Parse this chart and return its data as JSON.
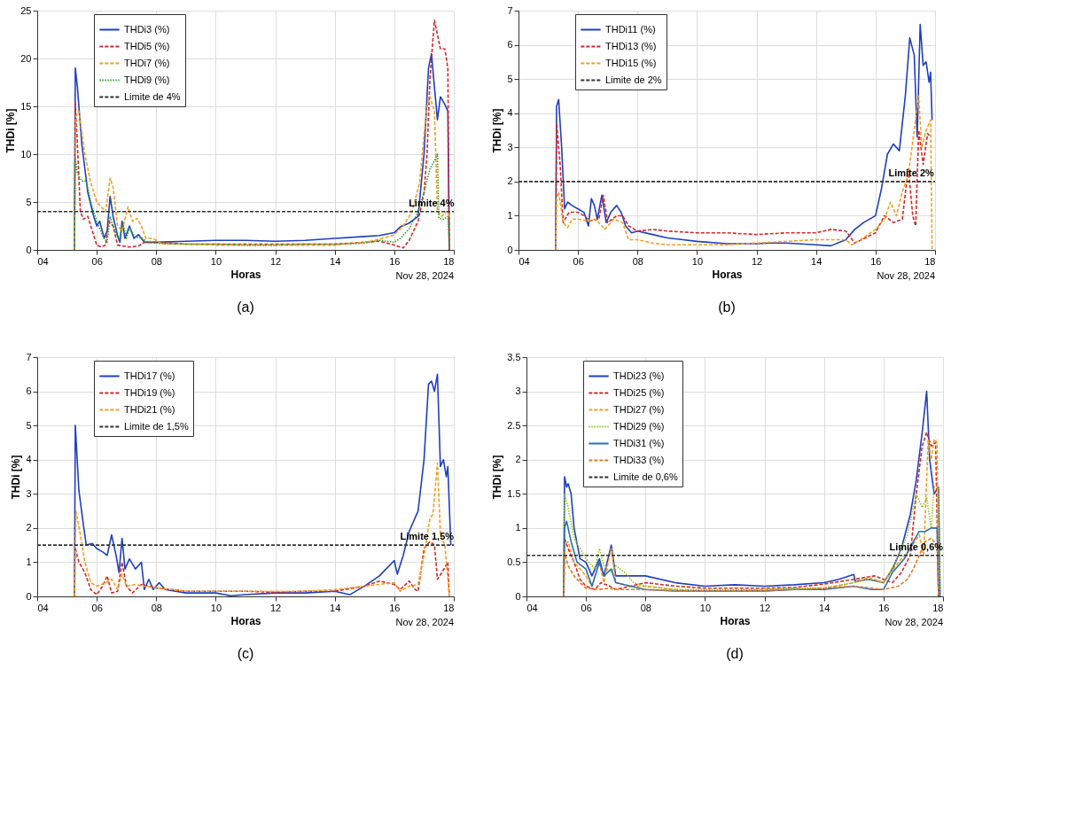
{
  "chart_data": [
    {
      "type": "line",
      "title": "(a)",
      "xlabel": "Horas",
      "ylabel": "THDi [%]",
      "xlim": [
        4,
        18
      ],
      "ylim": [
        0,
        25
      ],
      "yticks": [
        0,
        5,
        10,
        15,
        20,
        25
      ],
      "xticks": [
        {
          "value": 4,
          "label": "04"
        },
        {
          "value": 6,
          "label": "06"
        },
        {
          "value": 8,
          "label": "08"
        },
        {
          "value": 10,
          "label": "10"
        },
        {
          "value": 12,
          "label": "12"
        },
        {
          "value": 14,
          "label": "14"
        },
        {
          "value": 16,
          "label": "16"
        },
        {
          "value": 18,
          "label": "18"
        }
      ],
      "grid": true,
      "legend": "top left",
      "marker": "none",
      "annotations": [
        {
          "text": "Limite 4%",
          "x": 17.25,
          "y": 4
        },
        "Nov 28, 2024"
      ],
      "series": [
        {
          "name": "THDi3 (%)",
          "color": "#1f3fbf",
          "line_style": "solid",
          "x": [
            5.25,
            5.28,
            5.35,
            5.5,
            5.7,
            5.9,
            6.0,
            6.1,
            6.25,
            6.35,
            6.45,
            6.55,
            6.7,
            6.78,
            6.85,
            6.95,
            7.1,
            7.25,
            7.4,
            7.6,
            8.0,
            9,
            10,
            11,
            12,
            13,
            14,
            15,
            15.5,
            16,
            16.2,
            16.5,
            16.8,
            17.0,
            17.15,
            17.25,
            17.35,
            17.45,
            17.55,
            17.7,
            17.8,
            17.85
          ],
          "values": [
            0,
            19,
            17,
            11,
            6,
            3.5,
            2.5,
            3,
            1.2,
            2,
            5.6,
            3.5,
            1.5,
            0.8,
            3,
            1.2,
            2.5,
            1.2,
            1.6,
            0.8,
            0.8,
            0.9,
            1.0,
            1.0,
            0.9,
            1.0,
            1.2,
            1.4,
            1.5,
            1.8,
            2.4,
            2.8,
            3.5,
            10,
            19,
            20.5,
            17,
            13.6,
            16,
            15.2,
            14.5,
            0
          ]
        },
        {
          "name": "THDi5 (%)",
          "color": "#d62728",
          "line_style": "dashed",
          "x": [
            5.25,
            5.28,
            5.35,
            5.45,
            5.55,
            5.7,
            5.9,
            6.0,
            6.15,
            6.3,
            6.4,
            6.55,
            6.7,
            6.9,
            7.1,
            7.4,
            7.6,
            8,
            9,
            10,
            11,
            12,
            13,
            14,
            15,
            15.5,
            16,
            16.3,
            16.5,
            16.8,
            17.0,
            17.1,
            17.2,
            17.35,
            17.45,
            17.55,
            17.7,
            17.8,
            17.85
          ],
          "values": [
            0,
            15.5,
            11,
            4,
            3.2,
            3.5,
            1.5,
            0.5,
            0.3,
            0.5,
            3,
            2.5,
            0.5,
            0.4,
            0.3,
            0.4,
            0.8,
            0.8,
            0.6,
            0.6,
            0.6,
            0.6,
            0.6,
            0.6,
            0.8,
            0.9,
            0.5,
            0.2,
            1,
            3,
            6,
            10,
            18,
            24,
            22.5,
            21,
            21,
            19,
            0
          ]
        },
        {
          "name": "THDi7 (%)",
          "color": "#f0a020",
          "line_style": "dashed",
          "x": [
            5.25,
            5.3,
            5.4,
            5.6,
            5.8,
            6.0,
            6.15,
            6.3,
            6.45,
            6.55,
            6.7,
            6.85,
            7.05,
            7.2,
            7.35,
            7.5,
            7.65,
            7.9,
            8.2,
            9,
            10,
            11,
            12,
            13,
            14,
            15,
            15.5,
            16,
            16.3,
            16.6,
            16.85,
            17.0,
            17.1,
            17.2,
            17.35,
            17.45,
            17.6,
            17.75,
            17.8,
            17.85
          ],
          "values": [
            0,
            14,
            14.5,
            10,
            7,
            5,
            4.5,
            4,
            7.5,
            6.5,
            2.5,
            2,
            4.5,
            3,
            3.3,
            2.5,
            1.2,
            1.2,
            0.6,
            0.6,
            0.5,
            0.5,
            0.5,
            0.5,
            0.5,
            0.8,
            1.1,
            1.6,
            2.5,
            4,
            7,
            12,
            15,
            16,
            14.5,
            4,
            3.5,
            4,
            4,
            3.5
          ]
        },
        {
          "name": "THDi9 (%)",
          "color": "#2ca02c",
          "line_style": "dotted",
          "x": [
            5.25,
            5.28,
            5.35,
            5.5,
            5.65,
            5.8,
            6.0,
            6.2,
            6.35,
            6.45,
            6.6,
            6.75,
            6.88,
            7.0,
            7.1,
            7.3,
            7.5,
            7.7,
            8,
            9,
            10,
            11,
            12,
            13,
            14,
            15,
            15.5,
            16,
            16.2,
            16.5,
            16.8,
            17.0,
            17.2,
            17.35,
            17.45,
            17.5,
            17.65,
            17.8,
            17.85
          ],
          "values": [
            0,
            9.5,
            8,
            7.2,
            7.2,
            5,
            3,
            1.5,
            0.8,
            3.5,
            2,
            1,
            2.8,
            1.2,
            2.3,
            1.3,
            1.3,
            0.8,
            0.7,
            0.6,
            0.6,
            0.5,
            0.5,
            0.6,
            0.6,
            0.7,
            1,
            0.8,
            1.2,
            2.2,
            4,
            6,
            8.5,
            9.3,
            10,
            3.3,
            3.2,
            3.5,
            0
          ]
        },
        {
          "name": "Limite de 4%",
          "color": "#333333",
          "line_style": "dashed",
          "x": [
            4,
            18
          ],
          "values": [
            4,
            4
          ]
        }
      ]
    },
    {
      "type": "line",
      "title": "(b)",
      "xlabel": "Horas",
      "ylabel": "THDi [%]",
      "xlim": [
        4,
        18
      ],
      "ylim": [
        0,
        7
      ],
      "yticks": [
        0,
        1,
        2,
        3,
        4,
        5,
        6,
        7
      ],
      "xticks": [
        {
          "value": 4,
          "label": "04"
        },
        {
          "value": 6,
          "label": "06"
        },
        {
          "value": 8,
          "label": "08"
        },
        {
          "value": 10,
          "label": "10"
        },
        {
          "value": 12,
          "label": "12"
        },
        {
          "value": 14,
          "label": "14"
        },
        {
          "value": 16,
          "label": "16"
        },
        {
          "value": 18,
          "label": "18"
        }
      ],
      "grid": true,
      "legend": "top left",
      "marker": "none",
      "annotations": [
        {
          "text": "Limite 2%",
          "x": 17.2,
          "y": 2
        },
        "Nov 28, 2024"
      ],
      "series": [
        {
          "name": "THDi11 (%)",
          "color": "#1f3fbf",
          "line_style": "solid",
          "x": [
            5.25,
            5.28,
            5.35,
            5.45,
            5.55,
            5.65,
            5.8,
            6.0,
            6.2,
            6.35,
            6.45,
            6.55,
            6.65,
            6.8,
            6.95,
            7.1,
            7.3,
            7.45,
            7.6,
            7.8,
            8.0,
            8.5,
            9,
            10,
            11,
            12,
            12.5,
            13,
            14,
            14.5,
            15,
            15.3,
            15.6,
            16,
            16.2,
            16.4,
            16.6,
            16.8,
            17.0,
            17.15,
            17.3,
            17.4,
            17.5,
            17.6,
            17.7,
            17.8,
            17.85,
            17.9
          ],
          "values": [
            0,
            4.2,
            4.4,
            3,
            1.2,
            1.4,
            1.3,
            1.2,
            1.1,
            0.7,
            1.5,
            1.3,
            0.9,
            1.6,
            0.8,
            1.1,
            1.3,
            1.1,
            0.7,
            0.5,
            0.55,
            0.45,
            0.35,
            0.25,
            0.18,
            0.18,
            0.2,
            0.2,
            0.15,
            0.12,
            0.3,
            0.6,
            0.8,
            1,
            1.8,
            2.8,
            3.1,
            2.9,
            4.5,
            6.2,
            5.7,
            3.3,
            6.6,
            5.4,
            5.5,
            4.9,
            5.2,
            3.8
          ]
        },
        {
          "name": "THDi13 (%)",
          "color": "#d62728",
          "line_style": "dashed",
          "x": [
            5.25,
            5.28,
            5.4,
            5.5,
            5.7,
            6.0,
            6.2,
            6.4,
            6.7,
            6.85,
            7.0,
            7.3,
            7.5,
            7.7,
            8,
            8.5,
            9,
            10,
            11,
            12,
            13,
            14,
            14.5,
            15,
            15.3,
            16,
            16.3,
            16.6,
            16.9,
            17.1,
            17.25,
            17.35,
            17.45,
            17.6,
            17.75,
            17.85
          ],
          "values": [
            0,
            3.7,
            2.5,
            0.8,
            1.1,
            1.1,
            1.0,
            0.85,
            0.9,
            1.6,
            0.8,
            1.0,
            1.0,
            0.7,
            0.55,
            0.6,
            0.55,
            0.5,
            0.5,
            0.45,
            0.5,
            0.5,
            0.6,
            0.55,
            0.2,
            0.5,
            1.0,
            0.8,
            0.9,
            2.4,
            1.0,
            0.7,
            3.5,
            2.5,
            3.4,
            3.3
          ]
        },
        {
          "name": "THDi15 (%)",
          "color": "#f0a020",
          "line_style": "dashed",
          "x": [
            5.25,
            5.28,
            5.35,
            5.5,
            5.65,
            5.8,
            6.0,
            6.3,
            6.6,
            6.9,
            7.2,
            7.5,
            7.7,
            8,
            8.5,
            9,
            10,
            11,
            12,
            13,
            14,
            15,
            15.2,
            15.5,
            16,
            16.3,
            16.5,
            16.7,
            16.9,
            17.1,
            17.3,
            17.45,
            17.55,
            17.7,
            17.85,
            17.9
          ],
          "values": [
            0,
            1.5,
            1.7,
            0.8,
            0.65,
            0.9,
            0.9,
            0.85,
            0.9,
            0.6,
            0.9,
            0.8,
            0.3,
            0.3,
            0.2,
            0.15,
            0.15,
            0.15,
            0.2,
            0.25,
            0.3,
            0.3,
            0.15,
            0.3,
            0.6,
            0.9,
            1.4,
            1.0,
            1.7,
            2.2,
            3.5,
            4.5,
            3.0,
            3.5,
            3.8,
            0
          ]
        },
        {
          "name": "Limite de 2%",
          "color": "#333333",
          "line_style": "dashed",
          "x": [
            4,
            18
          ],
          "values": [
            2,
            2
          ]
        }
      ]
    },
    {
      "type": "line",
      "title": "(c)",
      "xlabel": "Horas",
      "ylabel": "THDi [%]",
      "xlim": [
        4,
        18
      ],
      "ylim": [
        0,
        7
      ],
      "yticks": [
        0,
        1,
        2,
        3,
        4,
        5,
        6,
        7
      ],
      "xticks": [
        {
          "value": 4,
          "label": "04"
        },
        {
          "value": 6,
          "label": "06"
        },
        {
          "value": 8,
          "label": "08"
        },
        {
          "value": 10,
          "label": "10"
        },
        {
          "value": 12,
          "label": "12"
        },
        {
          "value": 14,
          "label": "14"
        },
        {
          "value": 16,
          "label": "16"
        },
        {
          "value": 18,
          "label": "18"
        }
      ],
      "grid": true,
      "legend": "top left",
      "marker": "none",
      "annotations": [
        {
          "text": "Limite 1,5%",
          "x": 17.1,
          "y": 1.5
        },
        "Nov 28, 2024"
      ],
      "series": [
        {
          "name": "THDi17 (%)",
          "color": "#1f3fbf",
          "line_style": "solid",
          "x": [
            5.25,
            5.28,
            5.4,
            5.55,
            5.65,
            5.85,
            6.0,
            6.2,
            6.35,
            6.5,
            6.65,
            6.75,
            6.85,
            6.95,
            7.1,
            7.3,
            7.5,
            7.6,
            7.75,
            7.9,
            8.1,
            8.3,
            9,
            10,
            10.5,
            11,
            12,
            13,
            14,
            14.5,
            15,
            15.5,
            16,
            16.1,
            16.3,
            16.5,
            16.8,
            17.0,
            17.15,
            17.25,
            17.35,
            17.45,
            17.55,
            17.65,
            17.75,
            17.8,
            17.9
          ],
          "values": [
            0,
            5,
            3.1,
            2.1,
            1.5,
            1.55,
            1.4,
            1.3,
            1.2,
            1.8,
            1.2,
            0.7,
            1.7,
            0.8,
            1.1,
            0.8,
            1.0,
            0.2,
            0.5,
            0.2,
            0.4,
            0.2,
            0.1,
            0.1,
            0.02,
            0.05,
            0.1,
            0.1,
            0.15,
            0.05,
            0.3,
            0.6,
            1.05,
            0.65,
            1.2,
            1.9,
            2.5,
            4,
            6.2,
            6.3,
            6.0,
            6.5,
            3.8,
            4.0,
            3.5,
            3.8,
            1.5
          ]
        },
        {
          "name": "THDi19 (%)",
          "color": "#d62728",
          "line_style": "dashed",
          "x": [
            5.25,
            5.28,
            5.4,
            5.6,
            5.8,
            6.0,
            6.2,
            6.35,
            6.5,
            6.7,
            6.85,
            7.0,
            7.2,
            7.5,
            8,
            9,
            10,
            11,
            12,
            13,
            14,
            15,
            15.5,
            16,
            16.2,
            16.5,
            16.7,
            16.8,
            17.0,
            17.2,
            17.35,
            17.45,
            17.6,
            17.8,
            17.85
          ],
          "values": [
            0,
            1.4,
            1.0,
            0.7,
            0.2,
            0.05,
            0.3,
            0.6,
            0.1,
            0.15,
            1.0,
            0.3,
            0.1,
            0.35,
            0.25,
            0.15,
            0.15,
            0.15,
            0.12,
            0.15,
            0.15,
            0.3,
            0.45,
            0.35,
            0.2,
            0.45,
            0.2,
            0.15,
            1.4,
            1.6,
            1.5,
            0.5,
            0.7,
            1.0,
            0
          ]
        },
        {
          "name": "THDi21 (%)",
          "color": "#f0a020",
          "line_style": "dashed",
          "x": [
            5.25,
            5.3,
            5.45,
            5.6,
            5.8,
            6.0,
            6.3,
            6.5,
            6.7,
            6.85,
            7.0,
            7.3,
            7.6,
            8,
            9,
            10,
            11,
            12,
            13,
            14,
            15,
            15.5,
            16,
            16.2,
            16.5,
            16.8,
            17.0,
            17.2,
            17.3,
            17.45,
            17.55,
            17.7,
            17.85
          ],
          "values": [
            0,
            2.5,
            1.8,
            1.0,
            0.4,
            0.3,
            0.4,
            0.5,
            0.2,
            0.65,
            0.3,
            0.35,
            0.3,
            0.25,
            0.15,
            0.15,
            0.15,
            0.15,
            0.15,
            0.2,
            0.3,
            0.35,
            0.4,
            0.15,
            0.3,
            0.35,
            1.2,
            2.3,
            2.4,
            3.9,
            1.8,
            1.5,
            0
          ]
        },
        {
          "name": "Limite de 1,5%",
          "color": "#333333",
          "line_style": "dashed",
          "x": [
            4,
            18
          ],
          "values": [
            1.5,
            1.5
          ]
        }
      ]
    },
    {
      "type": "line",
      "title": "(d)",
      "xlabel": "Horas",
      "ylabel": "THDi [%]",
      "xlim": [
        4,
        18
      ],
      "ylim": [
        0,
        3.5
      ],
      "yticks": [
        0,
        0.5,
        1,
        1.5,
        2,
        2.5,
        3,
        3.5
      ],
      "xticks": [
        {
          "value": 4,
          "label": "04"
        },
        {
          "value": 6,
          "label": "06"
        },
        {
          "value": 8,
          "label": "08"
        },
        {
          "value": 10,
          "label": "10"
        },
        {
          "value": 12,
          "label": "12"
        },
        {
          "value": 14,
          "label": "14"
        },
        {
          "value": 16,
          "label": "16"
        },
        {
          "value": 18,
          "label": "18"
        }
      ],
      "grid": true,
      "legend": "top left",
      "marker": "none",
      "annotations": [
        {
          "text": "Limite 0,6%",
          "x": 17.1,
          "y": 0.6
        },
        "Nov 28, 2024"
      ],
      "series": [
        {
          "name": "THDi23 (%)",
          "color": "#1f3fbf",
          "line_style": "solid",
          "x": [
            5.25,
            5.28,
            5.35,
            5.4,
            5.5,
            5.6,
            5.8,
            6.0,
            6.2,
            6.45,
            6.6,
            6.85,
            7.0,
            7.3,
            7.6,
            8,
            9,
            10,
            11,
            12,
            13,
            14,
            14.5,
            15,
            15.05,
            15.5,
            16,
            16.3,
            16.6,
            16.9,
            17.1,
            17.3,
            17.45,
            17.55,
            17.7,
            17.85,
            17.9
          ],
          "values": [
            0,
            1.75,
            1.6,
            1.65,
            1.5,
            1.0,
            0.55,
            0.5,
            0.3,
            0.55,
            0.3,
            0.75,
            0.3,
            0.3,
            0.3,
            0.3,
            0.2,
            0.15,
            0.17,
            0.15,
            0.17,
            0.2,
            0.25,
            0.32,
            0.22,
            0.25,
            0.2,
            0.4,
            0.7,
            1.2,
            1.7,
            2.4,
            3.0,
            2.0,
            1.5,
            1.6,
            0
          ]
        },
        {
          "name": "THDi25 (%)",
          "color": "#d62728",
          "line_style": "dashed",
          "x": [
            5.25,
            5.28,
            5.4,
            5.6,
            5.8,
            6.0,
            6.3,
            6.5,
            6.8,
            7.0,
            7.5,
            8,
            9,
            10,
            11,
            12,
            13,
            14,
            15,
            15.7,
            16,
            16.3,
            16.6,
            16.9,
            17.1,
            17.3,
            17.45,
            17.6,
            17.75,
            17.85
          ],
          "values": [
            0,
            0.85,
            0.7,
            0.5,
            0.25,
            0.15,
            0.1,
            0.2,
            0.15,
            0.1,
            0.15,
            0.2,
            0.15,
            0.12,
            0.12,
            0.12,
            0.13,
            0.18,
            0.25,
            0.3,
            0.25,
            0.2,
            0.35,
            0.6,
            1.5,
            2.2,
            2.4,
            2.2,
            2.25,
            0
          ]
        },
        {
          "name": "THDi27 (%)",
          "color": "#f0a020",
          "line_style": "dashed",
          "x": [
            5.25,
            5.28,
            5.4,
            5.6,
            5.8,
            6.0,
            6.2,
            6.45,
            6.6,
            6.85,
            7.0,
            7.5,
            8,
            9,
            10,
            11,
            12,
            13,
            14,
            15,
            15.5,
            16,
            16.5,
            16.9,
            17.2,
            17.35,
            17.5,
            17.6,
            17.7,
            17.8,
            17.85
          ],
          "values": [
            0,
            0.75,
            0.8,
            0.5,
            0.4,
            0.3,
            0.15,
            0.5,
            0.2,
            0.7,
            0.2,
            0.15,
            0.15,
            0.1,
            0.08,
            0.08,
            0.1,
            0.1,
            0.12,
            0.2,
            0.28,
            0.2,
            0.5,
            0.7,
            0.9,
            0.6,
            2.3,
            2.0,
            2.3,
            2.25,
            0
          ]
        },
        {
          "name": "THDi29 (%)",
          "color": "#8fc31f",
          "line_style": "dotted",
          "x": [
            5.25,
            5.28,
            5.4,
            5.6,
            5.8,
            6.0,
            6.3,
            6.45,
            6.6,
            6.85,
            7.0,
            7.3,
            7.6,
            8,
            9,
            10,
            11,
            12,
            13,
            14,
            15,
            15.5,
            16,
            16.4,
            16.8,
            17.1,
            17.3,
            17.45,
            17.6,
            17.7,
            17.85,
            17.9
          ],
          "values": [
            0,
            1.5,
            1.3,
            0.85,
            0.7,
            0.55,
            0.4,
            0.7,
            0.45,
            0.35,
            0.45,
            0.35,
            0.2,
            0.15,
            0.1,
            0.1,
            0.1,
            0.1,
            0.12,
            0.12,
            0.2,
            0.25,
            0.2,
            0.5,
            0.9,
            1.5,
            1.3,
            1.45,
            1.0,
            1.6,
            1.6,
            0
          ]
        },
        {
          "name": "THDi31 (%)",
          "color": "#2a6fb5",
          "line_style": "solid",
          "x": [
            5.25,
            5.28,
            5.35,
            5.5,
            5.7,
            6.0,
            6.2,
            6.45,
            6.6,
            6.85,
            7.0,
            7.5,
            8,
            9,
            10,
            11,
            12,
            13,
            14,
            15,
            15.6,
            16,
            16.3,
            16.7,
            17.0,
            17.2,
            17.4,
            17.6,
            17.8,
            17.85
          ],
          "values": [
            0,
            1.0,
            1.1,
            0.8,
            0.5,
            0.4,
            0.15,
            0.5,
            0.3,
            0.4,
            0.2,
            0.15,
            0.1,
            0.08,
            0.08,
            0.08,
            0.08,
            0.1,
            0.1,
            0.15,
            0.1,
            0.1,
            0.35,
            0.55,
            0.8,
            0.95,
            0.95,
            1.0,
            1.0,
            0
          ]
        },
        {
          "name": "THDi33 (%)",
          "color": "#e07b20",
          "line_style": "dashed",
          "x": [
            5.25,
            5.28,
            5.4,
            5.6,
            5.8,
            6.0,
            6.4,
            6.8,
            7.0,
            8,
            9,
            10,
            11,
            12,
            13,
            14,
            15,
            16,
            16.5,
            16.8,
            17.0,
            17.2,
            17.4,
            17.6,
            17.8,
            17.85
          ],
          "values": [
            0,
            0.65,
            0.45,
            0.3,
            0.2,
            0.12,
            0.1,
            0.12,
            0.1,
            0.1,
            0.08,
            0.08,
            0.08,
            0.08,
            0.1,
            0.12,
            0.15,
            0.1,
            0.15,
            0.25,
            0.4,
            0.6,
            0.8,
            0.85,
            0.75,
            0
          ]
        },
        {
          "name": "Limite de 0,6%",
          "color": "#333333",
          "line_style": "dashed",
          "x": [
            4,
            18
          ],
          "values": [
            0.6,
            0.6
          ]
        }
      ]
    }
  ]
}
